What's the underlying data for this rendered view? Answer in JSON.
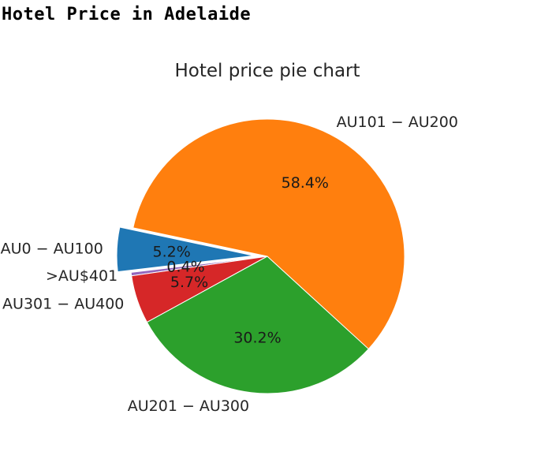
{
  "page": {
    "heading": "Hotel Price in Adelaide"
  },
  "chart_data": {
    "type": "pie",
    "title": "Hotel price pie chart",
    "categories": [
      "AU0 − AU100",
      ">AU$401",
      "AU301 − AU400",
      "AU201 − AU300",
      "AU101 − AU200"
    ],
    "values": [
      5.2,
      0.4,
      5.7,
      30.2,
      58.4
    ],
    "value_labels": [
      "5.2%",
      "0.4%",
      "5.7%",
      "30.2%",
      "58.4%"
    ],
    "unit": "%",
    "start_angle_deg": 168,
    "direction": "counterclockwise",
    "explode": [
      0.1,
      0,
      0,
      0,
      0
    ],
    "colors": [
      "#1f77b4",
      "#9467bd",
      "#d62728",
      "#2ca02c",
      "#ff7f0e"
    ]
  }
}
